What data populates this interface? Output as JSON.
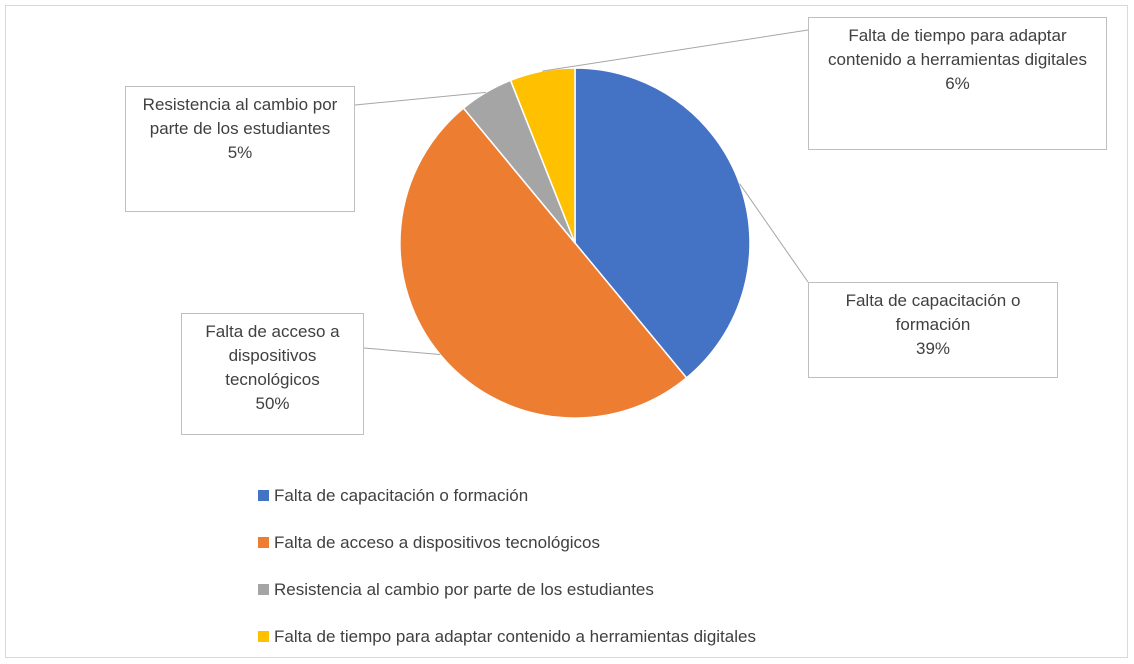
{
  "chart_data": {
    "type": "pie",
    "categories": [
      "Falta de capacitación o formación",
      "Falta de acceso a dispositivos tecnológicos",
      "Resistencia al cambio por parte de los estudiantes",
      "Falta de tiempo para adaptar contenido a herramientas digitales"
    ],
    "values": [
      39,
      50,
      5,
      6
    ],
    "value_labels": [
      "39%",
      "50%",
      "5%",
      "6%"
    ],
    "colors": [
      "#4472c4",
      "#ed7d31",
      "#a5a5a5",
      "#ffc000"
    ],
    "legend": "bottom"
  }
}
